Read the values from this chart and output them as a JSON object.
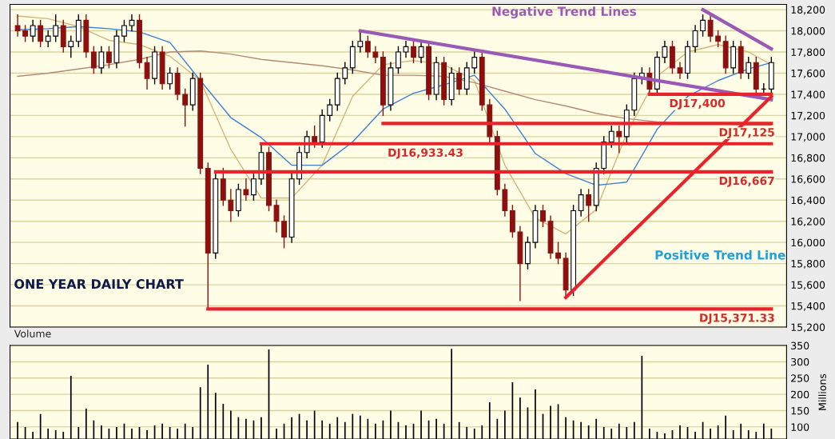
{
  "chart_data": [
    {
      "type": "candlestick",
      "categories": [
        null,
        null,
        null,
        null,
        null,
        null,
        null,
        null,
        null,
        null,
        null,
        null,
        null,
        null,
        null,
        null,
        null,
        null,
        null,
        null,
        null,
        null,
        null,
        null,
        null,
        null,
        null,
        null,
        null,
        null,
        null,
        null,
        null,
        null,
        null,
        null,
        null,
        null,
        null,
        null,
        null,
        null,
        null,
        null,
        null,
        null,
        null,
        null,
        null,
        null,
        null,
        null,
        null,
        null,
        null,
        null,
        null,
        null,
        null,
        null,
        null,
        null,
        null,
        null,
        null,
        null,
        null,
        null,
        null,
        null,
        null,
        null,
        null,
        null,
        null,
        null,
        null,
        null,
        null,
        null,
        null,
        null,
        null,
        null,
        null,
        null,
        null,
        null,
        null,
        null,
        null,
        null,
        null,
        null,
        null,
        null,
        null,
        null,
        null,
        null
      ],
      "ohlc": [
        [
          18050,
          18150,
          17950,
          18000
        ],
        [
          18000,
          18050,
          17900,
          17950
        ],
        [
          17950,
          18100,
          17900,
          18050
        ],
        [
          18050,
          18100,
          17850,
          17900
        ],
        [
          17900,
          18000,
          17850,
          17950
        ],
        [
          17950,
          18150,
          17900,
          18050
        ],
        [
          18050,
          18100,
          17800,
          17850
        ],
        [
          17850,
          17950,
          17750,
          17900
        ],
        [
          17900,
          18150,
          17850,
          18100
        ],
        [
          18100,
          18150,
          17750,
          17800
        ],
        [
          17800,
          17850,
          17600,
          17650
        ],
        [
          17650,
          17850,
          17600,
          17800
        ],
        [
          17800,
          17850,
          17650,
          17700
        ],
        [
          17700,
          18000,
          17650,
          17950
        ],
        [
          17950,
          18100,
          17900,
          18050
        ],
        [
          18050,
          18150,
          18000,
          18100
        ],
        [
          18100,
          18150,
          17650,
          17700
        ],
        [
          17700,
          17750,
          17450,
          17550
        ],
        [
          17550,
          17850,
          17500,
          17800
        ],
        [
          17800,
          17850,
          17450,
          17500
        ],
        [
          17500,
          17650,
          17450,
          17600
        ],
        [
          17600,
          17650,
          17350,
          17400
        ],
        [
          17400,
          17450,
          17100,
          17300
        ],
        [
          17300,
          17600,
          17250,
          17550
        ],
        [
          17550,
          17600,
          16650,
          16700
        ],
        [
          16700,
          16750,
          15370,
          15900
        ],
        [
          15900,
          16650,
          15850,
          16600
        ],
        [
          16600,
          16700,
          16350,
          16400
        ],
        [
          16400,
          16500,
          16200,
          16300
        ],
        [
          16300,
          16550,
          16250,
          16500
        ],
        [
          16500,
          16600,
          16400,
          16450
        ],
        [
          16450,
          16650,
          16400,
          16600
        ],
        [
          16600,
          16930,
          16550,
          16850
        ],
        [
          16850,
          16900,
          16300,
          16350
        ],
        [
          16350,
          16400,
          16100,
          16200
        ],
        [
          16200,
          16250,
          15950,
          16050
        ],
        [
          16050,
          16650,
          16000,
          16600
        ],
        [
          16600,
          16900,
          16550,
          16850
        ],
        [
          16850,
          17050,
          16800,
          17000
        ],
        [
          17000,
          17100,
          16900,
          16950
        ],
        [
          16950,
          17250,
          16900,
          17200
        ],
        [
          17200,
          17350,
          17150,
          17300
        ],
        [
          17300,
          17600,
          17250,
          17550
        ],
        [
          17550,
          17700,
          17500,
          17650
        ],
        [
          17650,
          17900,
          17600,
          17850
        ],
        [
          17850,
          18000,
          17800,
          17900
        ],
        [
          17900,
          17950,
          17750,
          17800
        ],
        [
          17800,
          17850,
          17700,
          17750
        ],
        [
          17750,
          17800,
          17200,
          17300
        ],
        [
          17300,
          17700,
          17250,
          17650
        ],
        [
          17650,
          17850,
          17600,
          17800
        ],
        [
          17800,
          17900,
          17750,
          17850
        ],
        [
          17850,
          17900,
          17700,
          17750
        ],
        [
          17750,
          17900,
          17700,
          17850
        ],
        [
          17850,
          17900,
          17350,
          17400
        ],
        [
          17400,
          17750,
          17350,
          17700
        ],
        [
          17700,
          17750,
          17300,
          17350
        ],
        [
          17350,
          17650,
          17300,
          17600
        ],
        [
          17600,
          17650,
          17400,
          17450
        ],
        [
          17450,
          17700,
          17400,
          17650
        ],
        [
          17650,
          17800,
          17600,
          17750
        ],
        [
          17750,
          17800,
          17250,
          17300
        ],
        [
          17300,
          17350,
          16950,
          17000
        ],
        [
          17000,
          17050,
          16450,
          16500
        ],
        [
          16500,
          16550,
          16250,
          16300
        ],
        [
          16300,
          16350,
          16050,
          16100
        ],
        [
          16100,
          16150,
          15450,
          15800
        ],
        [
          15800,
          16050,
          15750,
          16000
        ],
        [
          16000,
          16350,
          15950,
          16300
        ],
        [
          16300,
          16350,
          16150,
          16200
        ],
        [
          16200,
          16250,
          15850,
          15900
        ],
        [
          15900,
          16000,
          15800,
          15850
        ],
        [
          15850,
          15900,
          15500,
          15550
        ],
        [
          15550,
          16350,
          15500,
          16300
        ],
        [
          16300,
          16500,
          16250,
          16450
        ],
        [
          16450,
          16500,
          16200,
          16350
        ],
        [
          16350,
          16750,
          16300,
          16700
        ],
        [
          16700,
          17000,
          16650,
          16950
        ],
        [
          16950,
          17100,
          16900,
          17050
        ],
        [
          17050,
          17100,
          16850,
          17000
        ],
        [
          17000,
          17300,
          16950,
          17250
        ],
        [
          17250,
          17600,
          17200,
          17550
        ],
        [
          17550,
          17650,
          17500,
          17600
        ],
        [
          17600,
          17650,
          17400,
          17450
        ],
        [
          17450,
          17800,
          17400,
          17750
        ],
        [
          17750,
          17900,
          17700,
          17850
        ],
        [
          17850,
          17900,
          17600,
          17650
        ],
        [
          17650,
          17700,
          17550,
          17600
        ],
        [
          17600,
          17900,
          17550,
          17850
        ],
        [
          17850,
          18050,
          17800,
          18000
        ],
        [
          18000,
          18150,
          17950,
          18100
        ],
        [
          18100,
          18150,
          17900,
          17950
        ],
        [
          17950,
          18000,
          17850,
          17900
        ],
        [
          17900,
          17950,
          17600,
          17650
        ],
        [
          17650,
          17900,
          17600,
          17850
        ],
        [
          17850,
          17900,
          17550,
          17600
        ],
        [
          17600,
          17750,
          17550,
          17700
        ],
        [
          17700,
          17750,
          17400,
          17450
        ],
        [
          17450,
          17500,
          17400,
          17450
        ],
        [
          17450,
          17750,
          17400,
          17700
        ]
      ],
      "series": [
        {
          "type": "line",
          "color": "#d4b47a",
          "values": [
            18140,
            null,
            null,
            null,
            18115,
            null,
            null,
            null,
            18040,
            null,
            null,
            null,
            17910,
            null,
            null,
            null,
            17870,
            null,
            null,
            null,
            17760,
            null,
            null,
            null,
            17530,
            null,
            null,
            null,
            16880,
            null,
            null,
            null,
            16420,
            null,
            null,
            null,
            16420,
            null,
            null,
            null,
            16730,
            null,
            null,
            null,
            17380,
            null,
            null,
            null,
            17680,
            null,
            null,
            null,
            17720,
            null,
            null,
            null,
            17680,
            null,
            null,
            null,
            17530,
            null,
            null,
            null,
            16730,
            null,
            null,
            null,
            16230,
            null,
            null,
            null,
            16080,
            null,
            null,
            null,
            16310,
            null,
            null,
            null,
            17030,
            null,
            null,
            null,
            17570,
            null,
            null,
            null,
            17800,
            null,
            null,
            null,
            17870,
            null,
            null,
            null,
            17800,
            null,
            null,
            17680
          ]
        },
        {
          "type": "line",
          "color": "#3a7fd5",
          "values": [
            18010,
            null,
            null,
            null,
            18020,
            null,
            null,
            null,
            18040,
            null,
            null,
            null,
            18020,
            null,
            null,
            null,
            17990,
            null,
            null,
            null,
            17890,
            null,
            null,
            null,
            17530,
            null,
            null,
            null,
            17180,
            null,
            null,
            null,
            16990,
            null,
            null,
            null,
            16730,
            null,
            null,
            null,
            16730,
            null,
            null,
            null,
            16950,
            null,
            null,
            null,
            17260,
            null,
            null,
            null,
            17410,
            null,
            null,
            null,
            17490,
            null,
            null,
            null,
            17580,
            null,
            null,
            null,
            17260,
            null,
            null,
            null,
            16840,
            null,
            null,
            null,
            16650,
            null,
            null,
            null,
            16540,
            null,
            null,
            null,
            16570,
            null,
            null,
            null,
            17070,
            null,
            null,
            null,
            17380,
            null,
            null,
            null,
            17530,
            null,
            null,
            null,
            17640,
            null,
            null,
            17700
          ]
        },
        {
          "type": "line",
          "color": "#b58a78",
          "values": [
            17570,
            null,
            null,
            null,
            17600,
            null,
            null,
            null,
            17640,
            null,
            null,
            null,
            17680,
            null,
            null,
            null,
            17730,
            null,
            null,
            null,
            17800,
            null,
            null,
            null,
            17810,
            null,
            null,
            null,
            17780,
            null,
            null,
            null,
            17730,
            null,
            null,
            null,
            17700,
            null,
            null,
            null,
            17670,
            null,
            null,
            null,
            17630,
            null,
            null,
            null,
            17580,
            null,
            null,
            null,
            17580,
            null,
            null,
            null,
            17570,
            null,
            null,
            null,
            17510,
            null,
            null,
            null,
            17430,
            null,
            null,
            null,
            17350,
            null,
            null,
            null,
            17290,
            null,
            null,
            null,
            17220,
            null,
            null,
            null,
            17170,
            null,
            null,
            null,
            17140,
            null,
            null,
            null,
            17120,
            null,
            null,
            null,
            17120,
            null,
            null,
            null,
            17110,
            null,
            null,
            17110
          ]
        },
        {
          "type": "line",
          "color": "#9b59b6",
          "values": [
            null,
            null,
            null,
            null,
            null,
            null,
            null,
            null,
            null,
            null,
            null,
            null,
            null,
            null,
            null,
            null,
            null,
            null,
            null,
            null,
            null,
            null,
            null,
            null,
            null,
            null,
            null,
            null,
            null,
            null,
            null,
            null,
            null,
            null,
            null,
            null,
            null,
            null,
            null,
            null,
            null,
            null,
            null,
            null,
            null,
            18000,
            null,
            null,
            null,
            null,
            null,
            null,
            null,
            null,
            null,
            null,
            null,
            null,
            null,
            null,
            null,
            null,
            null,
            null,
            null,
            null,
            null,
            null,
            null,
            null,
            null,
            null,
            null,
            null,
            null,
            null,
            null,
            null,
            null,
            null,
            null,
            null,
            null,
            null,
            null,
            null,
            null,
            null,
            null,
            null,
            null,
            null,
            null,
            null,
            null,
            null,
            null,
            null,
            null,
            17350
          ]
        },
        {
          "type": "line",
          "color": "#9b59b6",
          "values": [
            null,
            null,
            null,
            null,
            null,
            null,
            null,
            null,
            null,
            null,
            null,
            null,
            null,
            null,
            null,
            null,
            null,
            null,
            null,
            null,
            null,
            null,
            null,
            null,
            null,
            null,
            null,
            null,
            null,
            null,
            null,
            null,
            null,
            null,
            null,
            null,
            null,
            null,
            null,
            null,
            null,
            null,
            null,
            null,
            null,
            null,
            null,
            null,
            null,
            null,
            null,
            null,
            null,
            null,
            null,
            null,
            null,
            null,
            null,
            null,
            null,
            null,
            null,
            null,
            null,
            null,
            null,
            null,
            null,
            null,
            null,
            null,
            null,
            null,
            null,
            null,
            null,
            null,
            null,
            null,
            null,
            null,
            null,
            null,
            null,
            null,
            null,
            null,
            null,
            null,
            18200,
            null,
            null,
            null,
            null,
            null,
            null,
            null,
            null,
            17830
          ]
        },
        {
          "type": "line",
          "color": "#e8232b",
          "values": [
            null,
            null,
            null,
            null,
            null,
            null,
            null,
            null,
            null,
            null,
            null,
            null,
            null,
            null,
            null,
            null,
            null,
            null,
            null,
            null,
            null,
            null,
            null,
            null,
            null,
            null,
            null,
            null,
            null,
            null,
            null,
            null,
            null,
            null,
            null,
            null,
            null,
            null,
            null,
            null,
            null,
            null,
            null,
            null,
            null,
            null,
            null,
            null,
            null,
            null,
            null,
            null,
            null,
            null,
            null,
            null,
            null,
            null,
            null,
            null,
            null,
            null,
            null,
            null,
            null,
            null,
            null,
            null,
            null,
            null,
            null,
            null,
            15480,
            null,
            null,
            null,
            null,
            null,
            null,
            null,
            null,
            null,
            null,
            null,
            null,
            null,
            null,
            null,
            null,
            null,
            null,
            null,
            null,
            null,
            null,
            null,
            null,
            null,
            null,
            17380
          ]
        },
        {
          "type": "line",
          "color": "#e8232b",
          "values": [
            null,
            null,
            null,
            null,
            null,
            null,
            null,
            null,
            null,
            null,
            null,
            null,
            null,
            null,
            null,
            null,
            null,
            null,
            null,
            null,
            null,
            null,
            null,
            null,
            null,
            15371,
            null,
            null,
            null,
            null,
            null,
            null,
            null,
            null,
            null,
            null,
            null,
            null,
            null,
            null,
            null,
            null,
            null,
            null,
            null,
            null,
            null,
            null,
            null,
            null,
            null,
            null,
            null,
            null,
            null,
            null,
            null,
            null,
            null,
            null,
            null,
            null,
            null,
            null,
            null,
            null,
            null,
            null,
            null,
            null,
            null,
            null,
            null,
            null,
            null,
            null,
            null,
            null,
            null,
            null,
            null,
            null,
            null,
            null,
            null,
            null,
            null,
            null,
            null,
            null,
            null,
            null,
            null,
            null,
            null,
            null,
            null,
            null,
            null,
            15371
          ]
        },
        {
          "type": "line",
          "color": "#e8232b",
          "values": [
            null,
            null,
            null,
            null,
            null,
            null,
            null,
            null,
            null,
            null,
            null,
            null,
            null,
            null,
            null,
            null,
            null,
            null,
            null,
            null,
            null,
            null,
            null,
            null,
            null,
            null,
            16667,
            null,
            null,
            null,
            null,
            null,
            null,
            null,
            null,
            null,
            null,
            null,
            null,
            null,
            null,
            null,
            null,
            null,
            null,
            null,
            null,
            null,
            null,
            null,
            null,
            null,
            null,
            null,
            null,
            null,
            null,
            null,
            null,
            null,
            null,
            null,
            null,
            null,
            null,
            null,
            null,
            null,
            null,
            null,
            null,
            null,
            null,
            null,
            null,
            null,
            null,
            null,
            null,
            null,
            null,
            null,
            null,
            null,
            null,
            null,
            null,
            null,
            null,
            null,
            null,
            null,
            null,
            null,
            null,
            null,
            null,
            null,
            null,
            16667
          ]
        },
        {
          "type": "line",
          "color": "#e8232b",
          "values": [
            null,
            null,
            null,
            null,
            null,
            null,
            null,
            null,
            null,
            null,
            null,
            null,
            null,
            null,
            null,
            null,
            null,
            null,
            null,
            null,
            null,
            null,
            null,
            null,
            null,
            null,
            null,
            null,
            null,
            null,
            null,
            null,
            16933,
            null,
            null,
            null,
            null,
            null,
            null,
            null,
            null,
            null,
            null,
            null,
            null,
            null,
            null,
            null,
            null,
            null,
            null,
            null,
            null,
            null,
            null,
            null,
            null,
            null,
            null,
            null,
            null,
            null,
            null,
            null,
            null,
            null,
            null,
            null,
            null,
            null,
            null,
            null,
            null,
            null,
            null,
            null,
            null,
            null,
            null,
            null,
            null,
            null,
            null,
            null,
            null,
            null,
            null,
            null,
            null,
            null,
            null,
            null,
            null,
            null,
            null,
            null,
            null,
            null,
            null,
            16933
          ]
        },
        {
          "type": "line",
          "color": "#e8232b",
          "values": [
            null,
            null,
            null,
            null,
            null,
            null,
            null,
            null,
            null,
            null,
            null,
            null,
            null,
            null,
            null,
            null,
            null,
            null,
            null,
            null,
            null,
            null,
            null,
            null,
            null,
            null,
            null,
            null,
            null,
            null,
            null,
            null,
            null,
            null,
            null,
            null,
            null,
            null,
            null,
            null,
            null,
            null,
            null,
            null,
            null,
            null,
            null,
            null,
            17125,
            null,
            null,
            null,
            null,
            null,
            null,
            null,
            null,
            null,
            null,
            null,
            null,
            null,
            null,
            null,
            null,
            null,
            null,
            null,
            null,
            null,
            null,
            null,
            null,
            null,
            null,
            null,
            null,
            null,
            null,
            null,
            null,
            null,
            null,
            null,
            null,
            null,
            null,
            null,
            null,
            null,
            null,
            null,
            null,
            null,
            null,
            null,
            null,
            null,
            null,
            17125
          ]
        },
        {
          "type": "line",
          "color": "#e8232b",
          "values": [
            null,
            null,
            null,
            null,
            null,
            null,
            null,
            null,
            null,
            null,
            null,
            null,
            null,
            null,
            null,
            null,
            null,
            null,
            null,
            null,
            null,
            null,
            null,
            null,
            null,
            null,
            null,
            null,
            null,
            null,
            null,
            null,
            null,
            null,
            null,
            null,
            null,
            null,
            null,
            null,
            null,
            null,
            null,
            null,
            null,
            null,
            null,
            null,
            null,
            null,
            null,
            null,
            null,
            null,
            null,
            null,
            null,
            null,
            null,
            null,
            null,
            null,
            null,
            null,
            null,
            null,
            null,
            null,
            null,
            null,
            null,
            null,
            null,
            null,
            null,
            null,
            null,
            null,
            null,
            null,
            null,
            null,
            null,
            17400,
            null,
            null,
            null,
            null,
            null,
            null,
            null,
            null,
            null,
            null,
            null,
            null,
            null,
            null,
            null,
            17400
          ]
        }
      ],
      "ylim": [
        15200,
        18250
      ],
      "yticks": [
        {
          "value": 15200,
          "label": "15,200"
        },
        {
          "value": 15400,
          "label": "15,400"
        },
        {
          "value": 15600,
          "label": "15,600"
        },
        {
          "value": 15800,
          "label": "15,800"
        },
        {
          "value": 16000,
          "label": "16,000"
        },
        {
          "value": 16200,
          "label": "16,200"
        },
        {
          "value": 16400,
          "label": "16,400"
        },
        {
          "value": 16600,
          "label": "16,600"
        },
        {
          "value": 16800,
          "label": "16,800"
        },
        {
          "value": 17000,
          "label": "17,000"
        },
        {
          "value": 17200,
          "label": "17,200"
        },
        {
          "value": 17400,
          "label": "17,400"
        },
        {
          "value": 17600,
          "label": "17,600"
        },
        {
          "value": 17800,
          "label": "17,800"
        },
        {
          "value": 18000,
          "label": "18,000"
        },
        {
          "value": 18200,
          "label": "18,200"
        }
      ],
      "grid": "y",
      "annotations": [
        {
          "text": "DJ15,371.33",
          "y": 15371
        },
        {
          "text": "DJ16,667",
          "y": 16667
        },
        {
          "text": "DJ16,933.43",
          "y": 16933
        },
        {
          "text": "DJ17,125",
          "y": 17125
        },
        {
          "text": "DJ17,400",
          "y": 17400
        },
        "Negative Trend Lines",
        "Positive Trend Line",
        "ONE YEAR DAILY CHART"
      ]
    },
    {
      "type": "bar",
      "title": "Volume",
      "ylabel": "Millions",
      "color": "#000000",
      "categories": [
        null,
        null,
        null,
        null,
        null,
        null,
        null,
        null,
        null,
        null,
        null,
        null,
        null,
        null,
        null,
        null,
        null,
        null,
        null,
        null,
        null,
        null,
        null,
        null,
        null,
        null,
        null,
        null,
        null,
        null,
        null,
        null,
        null,
        null,
        null,
        null,
        null,
        null,
        null,
        null,
        null,
        null,
        null,
        null,
        null,
        null,
        null,
        null,
        null,
        null,
        null,
        null,
        null,
        null,
        null,
        null,
        null,
        null,
        null,
        null,
        null,
        null,
        null,
        null,
        null,
        null,
        null,
        null,
        null,
        null,
        null,
        null,
        null,
        null,
        null,
        null,
        null,
        null,
        null,
        null,
        null,
        null,
        null,
        null,
        null,
        null,
        null,
        null,
        null,
        null,
        null,
        null,
        null,
        null,
        null,
        null,
        null,
        null,
        null,
        null
      ],
      "values": [
        115,
        100,
        85,
        140,
        95,
        90,
        85,
        257,
        100,
        156,
        120,
        105,
        95,
        100,
        110,
        95,
        100,
        90,
        105,
        110,
        100,
        95,
        110,
        100,
        222,
        291,
        205,
        171,
        150,
        130,
        125,
        120,
        130,
        338,
        95,
        110,
        130,
        140,
        120,
        150,
        120,
        110,
        130,
        115,
        140,
        135,
        125,
        110,
        120,
        150,
        115,
        105,
        110,
        150,
        120,
        125,
        110,
        340,
        115,
        100,
        95,
        105,
        176,
        125,
        150,
        237,
        190,
        160,
        215,
        140,
        165,
        170,
        130,
        120,
        115,
        105,
        125,
        100,
        95,
        110,
        100,
        115,
        318,
        95,
        85,
        80,
        90,
        105,
        100,
        85,
        115,
        95,
        105,
        135,
        90,
        110,
        90,
        85,
        110,
        95
      ],
      "ylim": [
        63,
        350
      ],
      "yticks": [
        100,
        150,
        200,
        250,
        300,
        350
      ],
      "grid": "y"
    }
  ]
}
